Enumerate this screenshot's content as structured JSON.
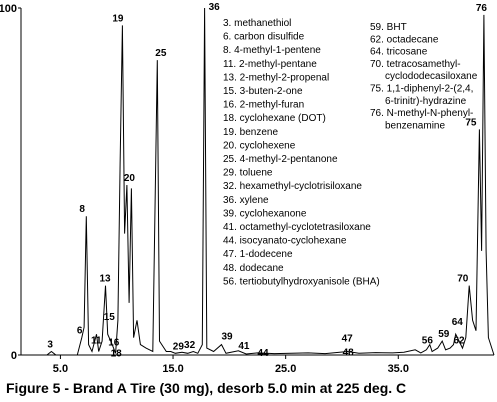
{
  "chart_data": {
    "type": "line",
    "title": "",
    "caption": "Figure 5 - Brand A Tire (30 mg), desorb 5.0 min at 225 deg. C",
    "xlabel": "",
    "ylabel": "",
    "xlim": [
      1.5,
      43.5
    ],
    "ylim": [
      0,
      100
    ],
    "x_ticks": [
      "5.0",
      "15.0",
      "25.0",
      "35.0"
    ],
    "x_tick_values": [
      5,
      15,
      25,
      35
    ],
    "y_ticks": [
      "0",
      "100"
    ],
    "y_tick_values": [
      0,
      100
    ],
    "series": [
      {
        "points": [
          [
            1.5,
            0
          ],
          [
            3.8,
            0
          ],
          [
            4.2,
            1
          ],
          [
            4.6,
            0
          ],
          [
            6.5,
            0
          ],
          [
            6.9,
            5
          ],
          [
            7.1,
            8
          ],
          [
            7.3,
            40
          ],
          [
            7.5,
            3
          ],
          [
            7.8,
            1
          ],
          [
            8.2,
            6
          ],
          [
            8.4,
            1
          ],
          [
            8.7,
            4
          ],
          [
            9.0,
            20
          ],
          [
            9.2,
            6
          ],
          [
            9.6,
            3
          ],
          [
            9.9,
            0.5
          ],
          [
            10.1,
            10
          ],
          [
            10.3,
            55
          ],
          [
            10.5,
            95
          ],
          [
            10.7,
            35
          ],
          [
            10.9,
            49
          ],
          [
            11.1,
            15
          ],
          [
            11.3,
            48
          ],
          [
            11.5,
            5
          ],
          [
            11.8,
            10
          ],
          [
            12.1,
            3
          ],
          [
            12.6,
            2
          ],
          [
            13.2,
            1
          ],
          [
            13.6,
            85
          ],
          [
            13.8,
            4
          ],
          [
            14.4,
            1
          ],
          [
            14.8,
            1
          ],
          [
            15.2,
            0.5
          ],
          [
            15.8,
            0.8
          ],
          [
            16.3,
            0.5
          ],
          [
            16.8,
            1
          ],
          [
            17.2,
            0.5
          ],
          [
            17.6,
            3
          ],
          [
            17.8,
            100
          ],
          [
            18.0,
            2
          ],
          [
            18.6,
            1
          ],
          [
            19.3,
            3
          ],
          [
            19.7,
            0.5
          ],
          [
            20.8,
            1.2
          ],
          [
            21.5,
            0.3
          ],
          [
            22.5,
            0.6
          ],
          [
            24.0,
            0.4
          ],
          [
            25.5,
            0.5
          ],
          [
            27.0,
            0.6
          ],
          [
            28.5,
            0.4
          ],
          [
            30.5,
            1
          ],
          [
            31.5,
            0.5
          ],
          [
            33.0,
            0.7
          ],
          [
            34.5,
            0.6
          ],
          [
            35.5,
            0.8
          ],
          [
            36.5,
            1.5
          ],
          [
            37.0,
            0.6
          ],
          [
            37.5,
            1.5
          ],
          [
            37.8,
            3
          ],
          [
            38.0,
            1
          ],
          [
            38.5,
            2
          ],
          [
            38.9,
            4
          ],
          [
            39.2,
            1.5
          ],
          [
            39.6,
            2
          ],
          [
            39.9,
            3
          ],
          [
            40.1,
            6
          ],
          [
            40.4,
            4
          ],
          [
            40.7,
            2
          ],
          [
            41.0,
            5
          ],
          [
            41.3,
            20
          ],
          [
            41.6,
            10
          ],
          [
            41.9,
            7
          ],
          [
            42.2,
            65
          ],
          [
            42.4,
            30
          ],
          [
            42.6,
            98
          ],
          [
            42.8,
            30
          ],
          [
            43.0,
            5
          ],
          [
            43.5,
            0
          ]
        ]
      }
    ],
    "peak_labels": [
      {
        "text": "3",
        "x": 4.2,
        "y": 1
      },
      {
        "text": "6",
        "x": 6.9,
        "y": 5
      },
      {
        "text": "8",
        "x": 7.3,
        "y": 40
      },
      {
        "text": "11",
        "x": 7.8,
        "y": 1
      },
      {
        "text": "13",
        "x": 9.0,
        "y": 20
      },
      {
        "text": "15",
        "x": 9.2,
        "y": 6
      },
      {
        "text": "16",
        "x": 9.6,
        "y": 3
      },
      {
        "text": "18",
        "x": 9.9,
        "y": 0.5
      },
      {
        "text": "19",
        "x": 10.5,
        "y": 95
      },
      {
        "text": "20",
        "x": 10.9,
        "y": 49
      },
      {
        "text": "25",
        "x": 13.6,
        "y": 85
      },
      {
        "text": "29",
        "x": 14.8,
        "y": 1
      },
      {
        "text": "32",
        "x": 15.8,
        "y": 0.8
      },
      {
        "text": "36",
        "x": 17.8,
        "y": 100
      },
      {
        "text": "39",
        "x": 19.3,
        "y": 3
      },
      {
        "text": "41",
        "x": 20.8,
        "y": 1.2
      },
      {
        "text": "44",
        "x": 22.5,
        "y": 0.6
      },
      {
        "text": "47",
        "x": 30.5,
        "y": 1
      },
      {
        "text": "48",
        "x": 30.5,
        "y": 0.5
      },
      {
        "text": "56",
        "x": 37.8,
        "y": 3
      },
      {
        "text": "59",
        "x": 38.9,
        "y": 4
      },
      {
        "text": "62",
        "x": 39.9,
        "y": 3
      },
      {
        "text": "64",
        "x": 40.1,
        "y": 6
      },
      {
        "text": "70",
        "x": 41.3,
        "y": 20
      },
      {
        "text": "75",
        "x": 42.2,
        "y": 65
      },
      {
        "text": "76",
        "x": 42.6,
        "y": 98
      }
    ],
    "legend_left": [
      "3. methanethiol",
      "6. carbon disulfide",
      "8. 4-methyl-1-pentene",
      "11. 2-methyl-pentane",
      "13. 2-methyl-2-propenal",
      "15. 3-buten-2-one",
      "16. 2-methyl-furan",
      "18. cyclohexane (DOT)",
      "19. benzene",
      "20. cyclohexene",
      "25. 4-methyl-2-pentanone",
      "29. toluene",
      "32. hexamethyl-cyclotrisiloxane",
      "36. xylene",
      "39. cyclohexanone",
      "41. octamethyl-cyclotetrasiloxane",
      "44. isocyanato-cyclohexane",
      "47. 1-dodecene",
      "48. dodecane",
      "56. tertiobutylhydroxyanisole (BHA)"
    ],
    "legend_right": [
      "59. BHT",
      "62. octadecane",
      "64. tricosane",
      "70. tetracosamethyl-",
      "cyclododecasiloxane",
      "75. 1,1-diphenyl-2-(2,4,",
      "6-trinitr)-hydrazine",
      "76. N-methyl-N-phenyl-",
      "benzenamine"
    ],
    "grid": false,
    "legend_placement": "top-center",
    "line_color": "#000000"
  }
}
